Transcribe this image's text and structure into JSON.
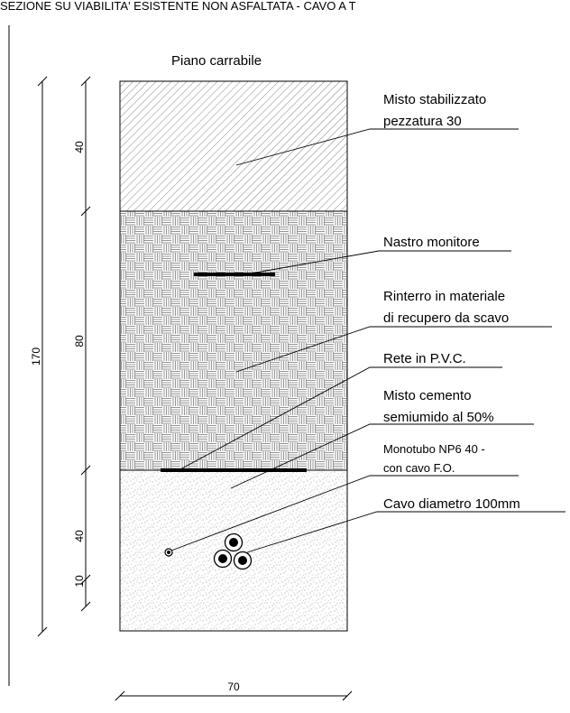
{
  "title": "SEZIONE SU VIABILITA' ESISTENTE NON ASFALTATA - CAVO A T",
  "top_label": "Piano carrabile",
  "layers": [
    {
      "id": "gravel",
      "thickness": "40",
      "callout": [
        "Misto stabilizzato",
        "pezzatura 30"
      ]
    },
    {
      "id": "fill",
      "thickness": "80",
      "callout": [
        "Rinterro in materiale",
        "di recupero da scavo"
      ]
    },
    {
      "id": "concrete",
      "thickness": "40",
      "callout": [
        "Misto cemento",
        "semiumido al 50%"
      ]
    }
  ],
  "callouts": {
    "tape": "Nastro monitore",
    "mesh": "Rete in P.V.C.",
    "duct": [
      "Monotubo NP6 40 -",
      "con cavo F.O."
    ],
    "cable": "Cavo diametro 100mm"
  },
  "dimensions": {
    "total": "170",
    "bottom_offset": "10",
    "width": "70"
  },
  "colors": {
    "line": "#000000",
    "hatch": "#555555",
    "background": "#ffffff"
  }
}
